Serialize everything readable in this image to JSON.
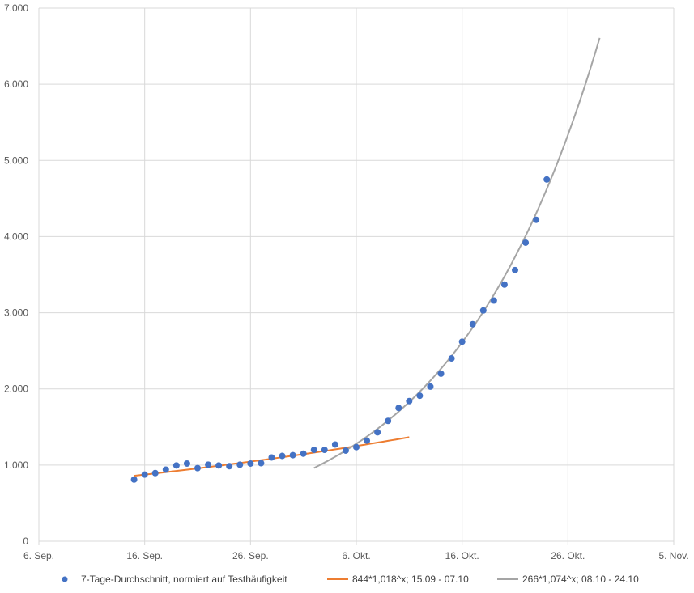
{
  "chart_data": {
    "type": "scatter",
    "xlim": [
      "2020-09-06",
      "2020-11-05"
    ],
    "ylim": [
      0,
      7000
    ],
    "grid": true,
    "legend_position": "bottom",
    "y_ticks": [
      0,
      1000,
      2000,
      3000,
      4000,
      5000,
      6000,
      7000
    ],
    "y_tick_labels": [
      "0",
      "1.000",
      "2.000",
      "3.000",
      "4.000",
      "5.000",
      "6.000",
      "7.000"
    ],
    "x_ticks": [
      "2020-09-06",
      "2020-09-16",
      "2020-09-26",
      "2020-10-06",
      "2020-10-16",
      "2020-10-26",
      "2020-11-05"
    ],
    "x_tick_labels": [
      "6. Sep.",
      "16. Sep.",
      "26. Sep.",
      "6. Okt.",
      "16. Okt.",
      "26. Okt.",
      "5. Nov."
    ],
    "series": [
      {
        "name": "7-Tage-Durchschnitt, normiert auf Testhäufigkeit",
        "kind": "scatter",
        "color": "#4472C4",
        "x": [
          "2020-09-15",
          "2020-09-16",
          "2020-09-17",
          "2020-09-18",
          "2020-09-19",
          "2020-09-20",
          "2020-09-21",
          "2020-09-22",
          "2020-09-23",
          "2020-09-24",
          "2020-09-25",
          "2020-09-26",
          "2020-09-27",
          "2020-09-28",
          "2020-09-29",
          "2020-09-30",
          "2020-10-01",
          "2020-10-02",
          "2020-10-03",
          "2020-10-04",
          "2020-10-05",
          "2020-10-06",
          "2020-10-07",
          "2020-10-08",
          "2020-10-09",
          "2020-10-10",
          "2020-10-11",
          "2020-10-12",
          "2020-10-13",
          "2020-10-14",
          "2020-10-15",
          "2020-10-16",
          "2020-10-17",
          "2020-10-18",
          "2020-10-19",
          "2020-10-20",
          "2020-10-21",
          "2020-10-22",
          "2020-10-23",
          "2020-10-24"
        ],
        "y": [
          810,
          875,
          895,
          940,
          995,
          1020,
          960,
          1005,
          995,
          985,
          1005,
          1020,
          1025,
          1100,
          1120,
          1130,
          1150,
          1200,
          1200,
          1270,
          1190,
          1235,
          1320,
          1430,
          1580,
          1750,
          1840,
          1910,
          2030,
          2200,
          2400,
          2620,
          2850,
          3030,
          3160,
          3370,
          3560,
          3920,
          4220,
          4750
        ]
      },
      {
        "name": "844*1,018^x; 15.09 - 07.10",
        "kind": "trendline",
        "color": "#ED7D31",
        "x": [
          "2020-09-15",
          "2020-10-11"
        ],
        "base": 844,
        "growth": 1.018
      },
      {
        "name": "266*1,074^x; 08.10 - 24.10",
        "kind": "trendline",
        "color": "#A5A5A5",
        "x": [
          "2020-10-02",
          "2020-10-29"
        ],
        "base": 266,
        "growth": 1.074
      }
    ]
  }
}
